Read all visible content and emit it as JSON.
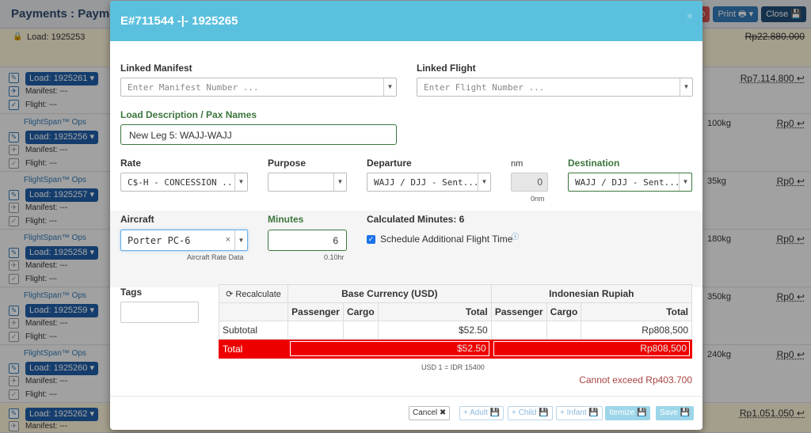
{
  "background": {
    "title": "Payments : Payment",
    "header_buttons": {
      "cancel_icon": "⊘",
      "print": "Print 🖶 ▾",
      "close": "Close 💾"
    },
    "rows": [
      {
        "type": "locked",
        "load": "Load: 1925253",
        "price": "Rp22.880.000"
      },
      {
        "load": "Load: 1925261 ▾",
        "manifest": "Manifest: ---",
        "flight": "Flight: ---",
        "weight": "",
        "price": "Rp7.114.800 ↩"
      },
      {
        "ops": "FlightSpan™ Ops",
        "load": "Load: 1925256 ▾",
        "manifest": "Manifest: ---",
        "flight": "Flight: ---",
        "weight": "100kg",
        "price": "Rp0 ↩"
      },
      {
        "ops": "FlightSpan™ Ops",
        "load": "Load: 1925257 ▾",
        "manifest": "Manifest: ---",
        "flight": "Flight: ---",
        "weight": "35kg",
        "price": "Rp0 ↩"
      },
      {
        "ops": "FlightSpan™ Ops",
        "load": "Load: 1925258 ▾",
        "manifest": "Manifest: ---",
        "flight": "Flight: ---",
        "weight": "180kg",
        "price": "Rp0 ↩"
      },
      {
        "ops": "FlightSpan™ Ops",
        "load": "Load: 1925259 ▾",
        "manifest": "Manifest: ---",
        "flight": "Flight: ---",
        "weight": "350kg",
        "price": "Rp0 ↩"
      },
      {
        "ops": "FlightSpan™ Ops",
        "load": "Load: 1925260 ▾",
        "manifest": "Manifest: ---",
        "flight": "Flight: ---",
        "weight": "240kg",
        "price": "Rp0 ↩"
      },
      {
        "load": "Load: 1925262 ▾",
        "manifest": "Manifest: ---",
        "price": "Rp1.051.050 ↩"
      }
    ]
  },
  "modal": {
    "title": "E#711544 -|- 1925265",
    "close": "×",
    "linked_manifest": {
      "label": "Linked Manifest",
      "placeholder": "Enter Manifest Number ..."
    },
    "linked_flight": {
      "label": "Linked Flight",
      "placeholder": "Enter Flight Number ..."
    },
    "load_description": {
      "label": "Load Description / Pax Names",
      "value": "New Leg 5: WAJJ-WAJJ"
    },
    "rate": {
      "label": "Rate",
      "value": "C$-H - CONCESSION ..."
    },
    "purpose": {
      "label": "Purpose",
      "value": ""
    },
    "departure": {
      "label": "Departure",
      "value": "WAJJ / DJJ - Sent..."
    },
    "nm": {
      "label": "nm",
      "value": "0",
      "hint": "0nm"
    },
    "destination": {
      "label": "Destination",
      "value": "WAJJ / DJJ - Sent..."
    },
    "aircraft": {
      "label": "Aircraft",
      "value": "Porter PC-6",
      "hint": "Aircraft Rate Data"
    },
    "minutes": {
      "label": "Minutes",
      "value": "6",
      "hint": "0.10hr"
    },
    "calculated_minutes": "Calculated Minutes: 6",
    "schedule_additional": {
      "label": "Schedule Additional Flight Time",
      "checked": true,
      "info_icon": "ⓘ"
    },
    "tags": {
      "label": "Tags",
      "value": ""
    },
    "table": {
      "recalculate": "⟳ Recalculate",
      "base_currency": "Base Currency (USD)",
      "local_currency": "Indonesian Rupiah",
      "col_passenger": "Passenger",
      "col_cargo": "Cargo",
      "col_total": "Total",
      "subtotal_label": "Subtotal",
      "subtotal_usd": "$52.50",
      "subtotal_idr": "Rp808,500",
      "total_label": "Total",
      "total_usd": "$52.50",
      "total_idr": "Rp808,500",
      "rate_note": "USD 1 = IDR 15400"
    },
    "error": "Cannot exceed Rp403.700",
    "footer": {
      "cancel": "Cancel ✖",
      "adult": "+ Adult 💾",
      "child": "+ Child 💾",
      "infant": "+ Infant 💾",
      "itemize": "Itemize 💾",
      "save": "Save 💾"
    }
  }
}
